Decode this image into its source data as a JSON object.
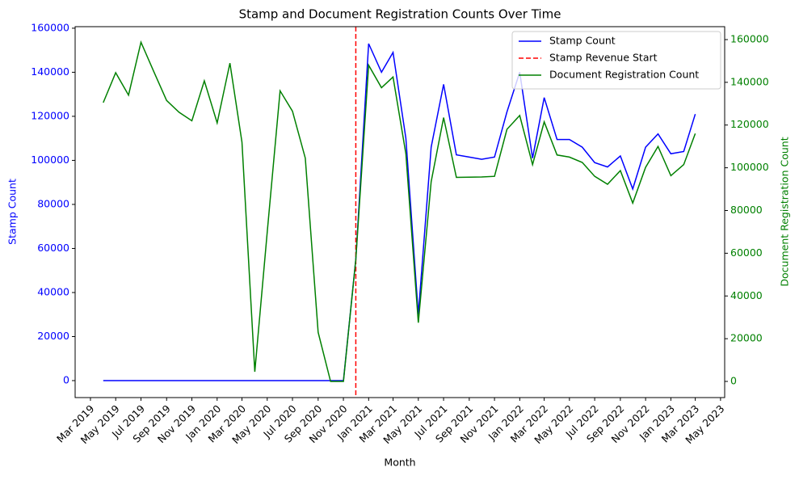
{
  "chart_data": {
    "type": "line",
    "title": "Stamp and Document Registration Counts Over Time",
    "xlabel": "Month",
    "ylabel": "Stamp Count",
    "y2label": "Document Registration Count",
    "x": [
      "2019-04",
      "2019-05",
      "2019-06",
      "2019-07",
      "2019-08",
      "2019-09",
      "2019-10",
      "2019-11",
      "2019-12",
      "2020-01",
      "2020-02",
      "2020-03",
      "2020-04",
      "2020-05",
      "2020-06",
      "2020-07",
      "2020-08",
      "2020-09",
      "2020-10",
      "2020-11",
      "2020-12",
      "2021-01",
      "2021-02",
      "2021-03",
      "2021-04",
      "2021-05",
      "2021-06",
      "2021-07",
      "2021-08",
      "2021-09",
      "2021-10",
      "2021-11",
      "2021-12",
      "2022-01",
      "2022-02",
      "2022-03",
      "2022-04",
      "2022-05",
      "2022-06",
      "2022-07",
      "2022-08",
      "2022-09",
      "2022-10",
      "2022-11",
      "2022-12",
      "2023-01",
      "2023-02",
      "2023-03"
    ],
    "xlim": [
      "2019-01-23",
      "2023-05-11"
    ],
    "xticks": [
      {
        "value": "2019-03",
        "label": "Mar 2019"
      },
      {
        "value": "2019-05",
        "label": "May 2019"
      },
      {
        "value": "2019-07",
        "label": "Jul 2019"
      },
      {
        "value": "2019-09",
        "label": "Sep 2019"
      },
      {
        "value": "2019-11",
        "label": "Nov 2019"
      },
      {
        "value": "2020-01",
        "label": "Jan 2020"
      },
      {
        "value": "2020-03",
        "label": "Mar 2020"
      },
      {
        "value": "2020-05",
        "label": "May 2020"
      },
      {
        "value": "2020-07",
        "label": "Jul 2020"
      },
      {
        "value": "2020-09",
        "label": "Sep 2020"
      },
      {
        "value": "2020-11",
        "label": "Nov 2020"
      },
      {
        "value": "2021-01",
        "label": "Jan 2021"
      },
      {
        "value": "2021-03",
        "label": "Mar 2021"
      },
      {
        "value": "2021-05",
        "label": "May 2021"
      },
      {
        "value": "2021-07",
        "label": "Jul 2021"
      },
      {
        "value": "2021-09",
        "label": "Sep 2021"
      },
      {
        "value": "2021-11",
        "label": "Nov 2021"
      },
      {
        "value": "2022-01",
        "label": "Jan 2022"
      },
      {
        "value": "2022-03",
        "label": "Mar 2022"
      },
      {
        "value": "2022-05",
        "label": "May 2022"
      },
      {
        "value": "2022-07",
        "label": "Jul 2022"
      },
      {
        "value": "2022-09",
        "label": "Sep 2022"
      },
      {
        "value": "2022-11",
        "label": "Nov 2022"
      },
      {
        "value": "2023-01",
        "label": "Jan 2023"
      },
      {
        "value": "2023-03",
        "label": "Mar 2023"
      },
      {
        "value": "2023-05",
        "label": "May 2023"
      }
    ],
    "ylim": [
      -7700,
      160700
    ],
    "yticks": [
      0,
      20000,
      40000,
      60000,
      80000,
      100000,
      120000,
      140000,
      160000
    ],
    "y2lim": [
      -7560,
      166050
    ],
    "y2ticks": [
      0,
      20000,
      40000,
      60000,
      80000,
      100000,
      120000,
      140000,
      160000
    ],
    "legend": "upper right",
    "series": [
      {
        "name": "Stamp Count",
        "color": "#0000ff",
        "axis": "y",
        "values": [
          0,
          0,
          0,
          0,
          0,
          0,
          0,
          0,
          0,
          0,
          0,
          0,
          0,
          0,
          0,
          0,
          0,
          0,
          0,
          0,
          55000,
          153000,
          140000,
          149000,
          110000,
          30000,
          106000,
          134500,
          102500,
          101500,
          100500,
          101500,
          122000,
          140000,
          101000,
          128500,
          109500,
          109500,
          106000,
          99000,
          97000,
          102000,
          87000,
          106000,
          112000,
          103000,
          104000,
          121000
        ]
      },
      {
        "name": "Stamp Revenue Start",
        "color": "#ff0000",
        "x": "2020-12",
        "linestyle": "dashed"
      },
      {
        "name": "Document Registration Count",
        "color": "#008000",
        "axis": "y2",
        "values": [
          130500,
          144500,
          134000,
          158800,
          145000,
          131500,
          126000,
          122000,
          140700,
          121000,
          149000,
          112000,
          4500,
          70000,
          136000,
          126500,
          104500,
          23000,
          0,
          0,
          57000,
          148000,
          137500,
          142500,
          106500,
          27500,
          93500,
          123500,
          95500,
          95600,
          95700,
          96000,
          118000,
          124500,
          101500,
          121500,
          106000,
          105000,
          102500,
          96000,
          92300,
          98700,
          83500,
          100200,
          110000,
          96300,
          101500,
          116000
        ]
      }
    ]
  }
}
